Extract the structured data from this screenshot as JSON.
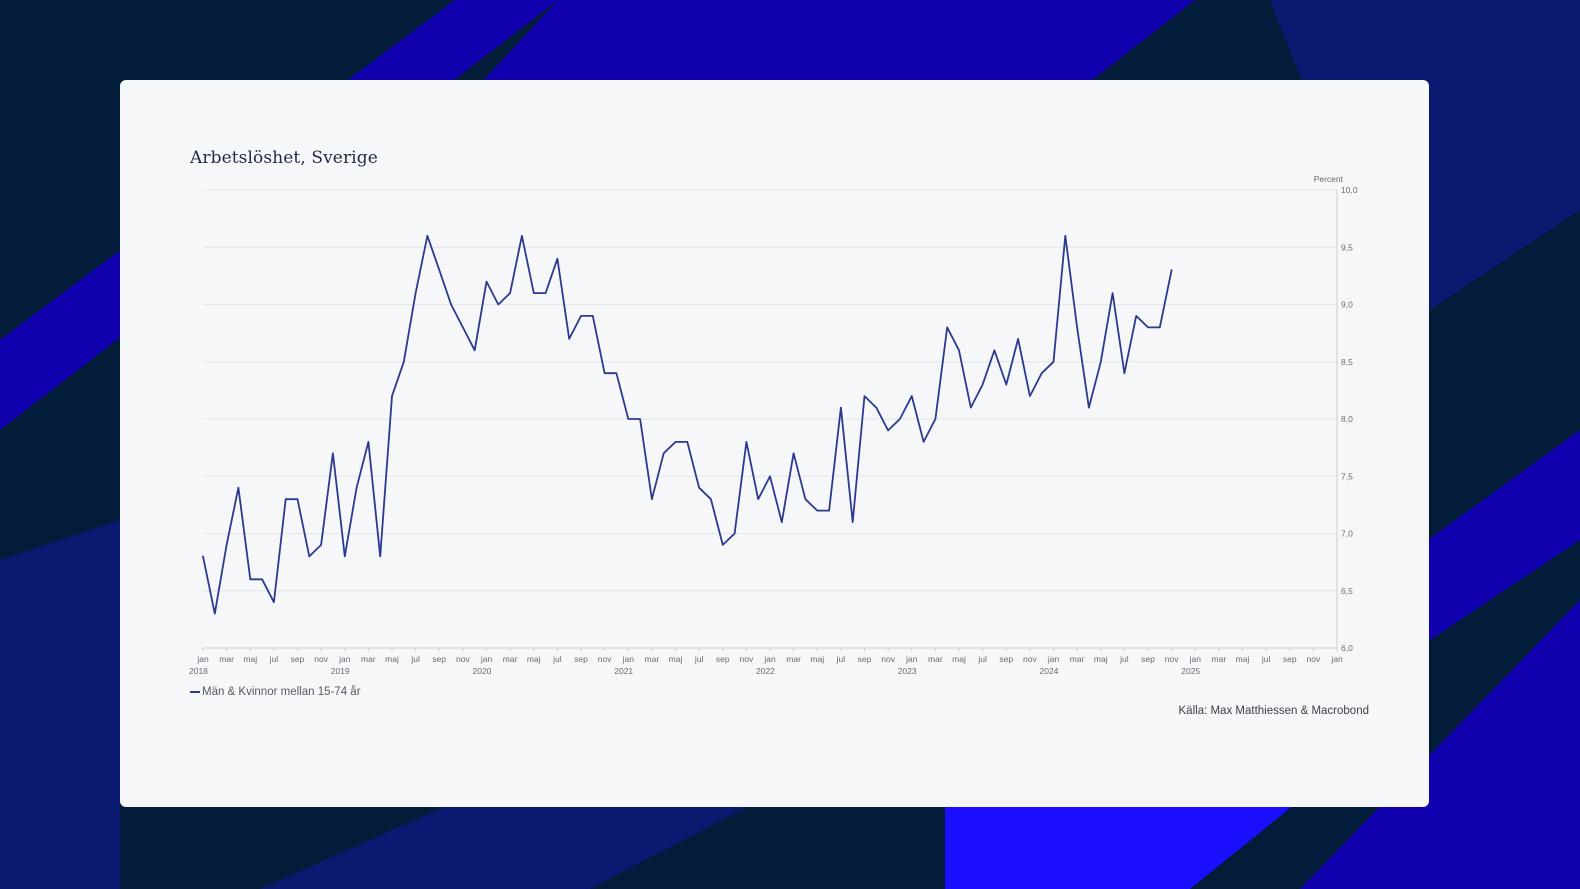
{
  "colors": {
    "page_background": "#021c3a",
    "stripe_blue": "#1000ad",
    "stripe_bright": "#1a10ff",
    "stripe_navy": "#0a1a70",
    "card_background": "#f6f7f8",
    "series_line": "#2b3990",
    "grid": "#e4e6ea"
  },
  "source": "Källa: Max Matthiessen & Macrobond",
  "chart_data": {
    "type": "line",
    "title": "Arbetslöshet, Sverige",
    "y_unit_label": "Percent",
    "ylim": [
      6.0,
      10.0
    ],
    "yticks": [
      "10,0",
      "9,5",
      "9,0",
      "8,5",
      "8,0",
      "7,5",
      "7,0",
      "6,5",
      "6,0"
    ],
    "yaxis_position": "right",
    "grid": true,
    "legend_position": "bottom-left",
    "x_start": "2018-01",
    "x_end": "2026-01",
    "month_ticks": [
      "jan",
      "mar",
      "maj",
      "jul",
      "sep",
      "nov"
    ],
    "year_labels": [
      "2018",
      "2019",
      "2020",
      "2021",
      "2022",
      "2023",
      "2024",
      "2025"
    ],
    "series": [
      {
        "name": "Män & Kvinnor mellan 15-74 år",
        "x_start": "2018-01",
        "frequency": "monthly",
        "values": [
          6.8,
          6.3,
          6.9,
          7.4,
          6.6,
          6.6,
          6.4,
          7.3,
          7.3,
          6.8,
          6.9,
          7.7,
          6.8,
          7.4,
          7.8,
          6.8,
          8.2,
          8.5,
          9.1,
          9.6,
          9.3,
          9.0,
          8.8,
          8.6,
          9.2,
          9.0,
          9.1,
          9.6,
          9.1,
          9.1,
          9.4,
          8.7,
          8.9,
          8.9,
          8.4,
          8.4,
          8.0,
          8.0,
          7.3,
          7.7,
          7.8,
          7.8,
          7.4,
          7.3,
          6.9,
          7.0,
          7.8,
          7.3,
          7.5,
          7.1,
          7.7,
          7.3,
          7.2,
          7.2,
          8.1,
          7.1,
          8.2,
          8.1,
          7.9,
          8.0,
          8.2,
          7.8,
          8.0,
          8.8,
          8.6,
          8.1,
          8.3,
          8.6,
          8.3,
          8.7,
          8.2,
          8.4,
          8.5,
          9.6,
          8.8,
          8.1,
          8.5,
          9.1,
          8.4,
          8.9,
          8.8,
          8.8,
          9.3
        ]
      }
    ]
  }
}
